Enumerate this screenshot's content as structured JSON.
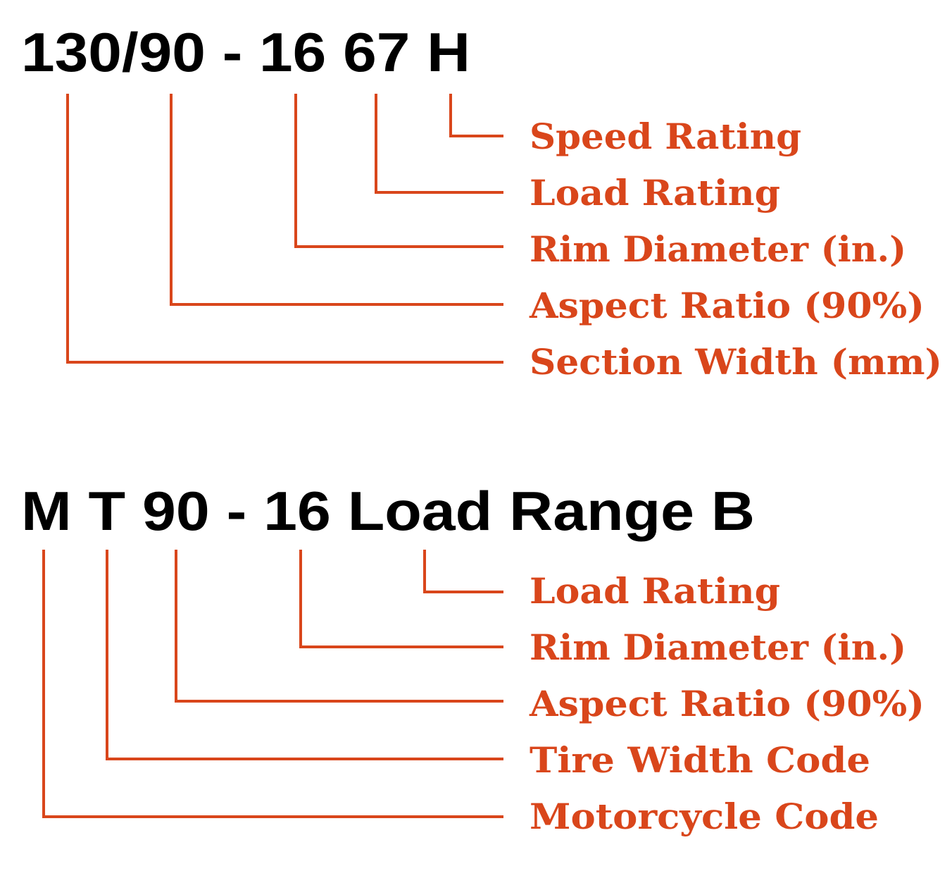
{
  "accent_color": "#d9461b",
  "diagrams": [
    {
      "code": "130/90 - 16 67 H",
      "labels": [
        "Speed Rating",
        "Load Rating",
        "Rim Diameter (in.)",
        "Aspect Ratio (90%)",
        "Section Width (mm)"
      ]
    },
    {
      "code": "M T 90 - 16 Load Range B",
      "labels": [
        "Load Rating",
        "Rim Diameter (in.)",
        "Aspect Ratio (90%)",
        "Tire Width Code",
        "Motorcycle Code"
      ]
    }
  ]
}
